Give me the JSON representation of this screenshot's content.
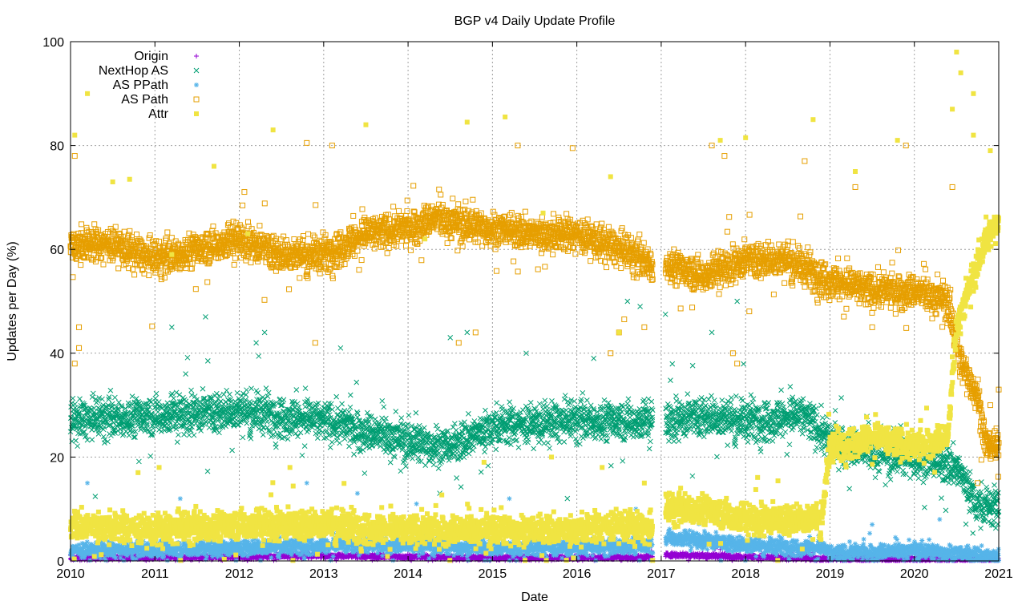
{
  "chart_data": {
    "type": "scatter",
    "title": "BGP v4 Daily Update Profile",
    "xlabel": "Date",
    "ylabel": "Updates per Day (%)",
    "xlim": [
      2010,
      2021
    ],
    "ylim": [
      0,
      100
    ],
    "x_ticks": [
      "2010",
      "2011",
      "2012",
      "2013",
      "2014",
      "2015",
      "2016",
      "2017",
      "2018",
      "2019",
      "2020",
      "2021"
    ],
    "y_ticks": [
      "0",
      "20",
      "40",
      "60",
      "80",
      "100"
    ],
    "grid": true,
    "legend_position": "top-left",
    "data_gap": [
      2016.9,
      2017.05
    ],
    "series": [
      {
        "name": "Origin",
        "marker": "plus",
        "color": "#9400d3",
        "segments": [
          [
            2010,
            0.6
          ],
          [
            2012,
            0.8
          ],
          [
            2013,
            1.0
          ],
          [
            2014,
            0.8
          ],
          [
            2015,
            0.6
          ],
          [
            2016.9,
            0.7
          ],
          [
            2017.05,
            1.2
          ],
          [
            2018,
            0.8
          ],
          [
            2019,
            0.4
          ],
          [
            2021,
            0.3
          ]
        ],
        "spread": 0.5,
        "outliers": [
          [
            2017.5,
            2.8
          ],
          [
            2017.7,
            2.2
          ],
          [
            2020,
            2.0
          ]
        ]
      },
      {
        "name": "NextHop AS",
        "marker": "x",
        "color": "#009e73",
        "segments": [
          [
            2010,
            27
          ],
          [
            2011,
            28
          ],
          [
            2012,
            29
          ],
          [
            2013,
            27
          ],
          [
            2013.5,
            25
          ],
          [
            2014,
            23
          ],
          [
            2014.5,
            22
          ],
          [
            2015,
            26
          ],
          [
            2016,
            27
          ],
          [
            2016.9,
            27
          ],
          [
            2017.05,
            27
          ],
          [
            2017.5,
            28
          ],
          [
            2018,
            27
          ],
          [
            2018.7,
            28
          ],
          [
            2019,
            23
          ],
          [
            2019.5,
            21
          ],
          [
            2020,
            20
          ],
          [
            2020.5,
            18
          ],
          [
            2020.75,
            11
          ],
          [
            2021,
            10
          ]
        ],
        "spread": 4,
        "outliers": [
          [
            2011.6,
            47
          ],
          [
            2011.2,
            45
          ],
          [
            2012.3,
            44
          ],
          [
            2016.6,
            50
          ],
          [
            2016.75,
            49
          ],
          [
            2017.05,
            47.5
          ],
          [
            2017.6,
            44
          ],
          [
            2017.9,
            50
          ],
          [
            2014.5,
            43
          ],
          [
            2014.7,
            44
          ],
          [
            2013.2,
            41
          ],
          [
            2012.2,
            42
          ],
          [
            2015.4,
            40
          ],
          [
            2016.2,
            39
          ]
        ]
      },
      {
        "name": "AS PPath",
        "marker": "star",
        "color": "#56b4e9",
        "segments": [
          [
            2010,
            2
          ],
          [
            2012,
            2.5
          ],
          [
            2013,
            3
          ],
          [
            2014,
            3
          ],
          [
            2015,
            2.5
          ],
          [
            2016,
            2.5
          ],
          [
            2016.9,
            3
          ],
          [
            2017.05,
            4.5
          ],
          [
            2017.5,
            4
          ],
          [
            2018,
            3
          ],
          [
            2018.9,
            2.5
          ],
          [
            2019,
            1.5
          ],
          [
            2020,
            2
          ],
          [
            2020.5,
            1.5
          ],
          [
            2021,
            0.8
          ]
        ],
        "spread": 1.6,
        "outliers": [
          [
            2010.2,
            15
          ],
          [
            2011.3,
            12
          ],
          [
            2012.8,
            15
          ],
          [
            2013.4,
            13
          ],
          [
            2014.1,
            11
          ],
          [
            2015.2,
            12
          ],
          [
            2017.4,
            10
          ],
          [
            2018.3,
            9
          ],
          [
            2019.5,
            7
          ],
          [
            2020.3,
            8
          ],
          [
            2016.7,
            10
          ]
        ]
      },
      {
        "name": "AS Path",
        "marker": "open-square",
        "color": "#e69f00",
        "segments": [
          [
            2010,
            61
          ],
          [
            2010.5,
            61
          ],
          [
            2011,
            58
          ],
          [
            2011.5,
            60
          ],
          [
            2012,
            62
          ],
          [
            2012.5,
            59
          ],
          [
            2013,
            59
          ],
          [
            2013.5,
            63
          ],
          [
            2014,
            64
          ],
          [
            2014.3,
            66
          ],
          [
            2014.6,
            65
          ],
          [
            2015,
            64
          ],
          [
            2015.5,
            63
          ],
          [
            2016,
            63
          ],
          [
            2016.5,
            60
          ],
          [
            2016.9,
            57
          ],
          [
            2017.05,
            57
          ],
          [
            2017.5,
            55
          ],
          [
            2018,
            58
          ],
          [
            2018.5,
            58
          ],
          [
            2019,
            54
          ],
          [
            2019.5,
            52
          ],
          [
            2020,
            52
          ],
          [
            2020.4,
            50
          ],
          [
            2020.55,
            38
          ],
          [
            2020.75,
            32
          ],
          [
            2020.85,
            22
          ],
          [
            2021,
            22
          ]
        ],
        "spread": 3.5,
        "outliers": [
          [
            2010.05,
            38
          ],
          [
            2010.1,
            41
          ],
          [
            2010.1,
            45
          ],
          [
            2010.05,
            78
          ],
          [
            2012.8,
            80.5
          ],
          [
            2012.9,
            42
          ],
          [
            2013.1,
            80
          ],
          [
            2014.6,
            42
          ],
          [
            2014.8,
            44
          ],
          [
            2015.3,
            80
          ],
          [
            2015.95,
            79.5
          ],
          [
            2016.5,
            44
          ],
          [
            2016.4,
            40
          ],
          [
            2016.8,
            45
          ],
          [
            2017.6,
            80
          ],
          [
            2017.75,
            78
          ],
          [
            2017.9,
            38
          ],
          [
            2017.85,
            40
          ],
          [
            2018.7,
            77
          ],
          [
            2019.3,
            72
          ],
          [
            2019.9,
            80
          ],
          [
            2019.5,
            45
          ],
          [
            2020.45,
            72
          ],
          [
            2020.75,
            15
          ],
          [
            2020.9,
            30
          ],
          [
            2021,
            33
          ]
        ]
      },
      {
        "name": "Attr",
        "marker": "filled-square",
        "color": "#f0e442",
        "segments": [
          [
            2010,
            7
          ],
          [
            2011,
            6
          ],
          [
            2012,
            7
          ],
          [
            2013,
            7
          ],
          [
            2014,
            6
          ],
          [
            2015,
            6
          ],
          [
            2016,
            6
          ],
          [
            2016.5,
            7
          ],
          [
            2016.9,
            6
          ],
          [
            2017.05,
            10
          ],
          [
            2017.5,
            10
          ],
          [
            2018,
            8
          ],
          [
            2018.5,
            8
          ],
          [
            2018.9,
            8
          ],
          [
            2019,
            22
          ],
          [
            2019.5,
            24
          ],
          [
            2020,
            22
          ],
          [
            2020.4,
            24
          ],
          [
            2020.5,
            45
          ],
          [
            2020.7,
            55
          ],
          [
            2020.85,
            62
          ],
          [
            2021,
            65
          ]
        ],
        "spread": 3,
        "outliers": [
          [
            2010.05,
            82
          ],
          [
            2010.2,
            90
          ],
          [
            2010.5,
            73
          ],
          [
            2010.7,
            73.5
          ],
          [
            2011.2,
            59
          ],
          [
            2011.7,
            76
          ],
          [
            2012.4,
            83
          ],
          [
            2012.1,
            63
          ],
          [
            2013.5,
            84
          ],
          [
            2014.2,
            62
          ],
          [
            2014.7,
            84.5
          ],
          [
            2015.15,
            85.5
          ],
          [
            2015.6,
            67
          ],
          [
            2016.4,
            74
          ],
          [
            2016.5,
            44
          ],
          [
            2016.8,
            15
          ],
          [
            2017.7,
            81
          ],
          [
            2018.0,
            81.5
          ],
          [
            2018.8,
            85
          ],
          [
            2019.3,
            75
          ],
          [
            2019.8,
            81
          ],
          [
            2020.45,
            87
          ],
          [
            2020.55,
            94
          ],
          [
            2020.5,
            98
          ],
          [
            2020.7,
            90
          ],
          [
            2020.7,
            82
          ],
          [
            2020.9,
            79
          ],
          [
            2010.8,
            17
          ],
          [
            2011.05,
            18
          ],
          [
            2012.6,
            18
          ],
          [
            2014.9,
            19
          ],
          [
            2015.7,
            20
          ],
          [
            2016.3,
            18
          ]
        ]
      }
    ]
  }
}
